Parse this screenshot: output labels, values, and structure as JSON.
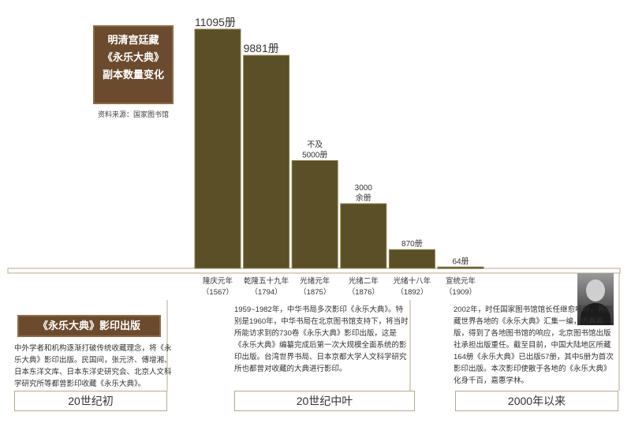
{
  "chart_data": {
    "type": "bar",
    "title_lines": [
      "明清宫廷藏",
      "《永乐大典》",
      "副本数量变化"
    ],
    "source": "资料来源：国家图书馆",
    "categories": [
      {
        "name": "隆庆元年",
        "year": "（1567）"
      },
      {
        "name": "乾隆五十九年",
        "year": "（1794）"
      },
      {
        "name": "光绪元年",
        "year": "（1875）"
      },
      {
        "name": "光绪二年",
        "year": "（1876）"
      },
      {
        "name": "光绪十八年",
        "year": "（1892）"
      },
      {
        "name": "宣统元年",
        "year": "（1909）"
      }
    ],
    "values": [
      11095,
      9881,
      5000,
      3000,
      870,
      64
    ],
    "data_labels": [
      [
        "11095册"
      ],
      [
        "9881册"
      ],
      [
        "不及",
        "5000册"
      ],
      [
        "3000",
        "余册"
      ],
      [
        "870册"
      ],
      [
        "64册"
      ]
    ],
    "ylim": [
      0,
      11095
    ],
    "colors": {
      "bar": "#5b4f27",
      "bar_border": "#8a7d4c",
      "baseline": "#b9a98e"
    }
  },
  "sections": {
    "era1_title": "《永乐大典》影印出版",
    "era1_text": "中外学者和机构逐渐打破传统收藏理念，将《永乐大典》影印出版。民国间，张元济、傅增湘、日本东洋文库、日本东洋史研究会、北京人文科学研究所等都曾影印收藏《永乐大典》。",
    "era2_text": "1959~1982年，中华书局多次影印《永乐大典》。特别是1960年，中华书局在北京图书馆支持下，将当时所能访求到的730卷《永乐大典》影印出版，这是《永乐大典》编纂完成后第一次大规模全面系统的影印出版。台湾世界书局、日本京都大学人文科学研究所也都曾对收藏的大典进行影印。",
    "era3_text": "2002年，时任国家图书馆馆长任继愈呼吁，将散藏世界各地的《永乐大典》汇集一编，仿真再版，得到了各地图书馆的响应，北京图书馆出版社承担出版重任。截至目前，中国大陆地区所藏164册《永乐大典》已出版57册，其中5册为首次影印出版。本次影印使散于各地的《永乐大典》化身千百，嘉惠学林。"
  },
  "periods": [
    "20世纪初",
    "20世纪中叶",
    "2000年以来"
  ]
}
